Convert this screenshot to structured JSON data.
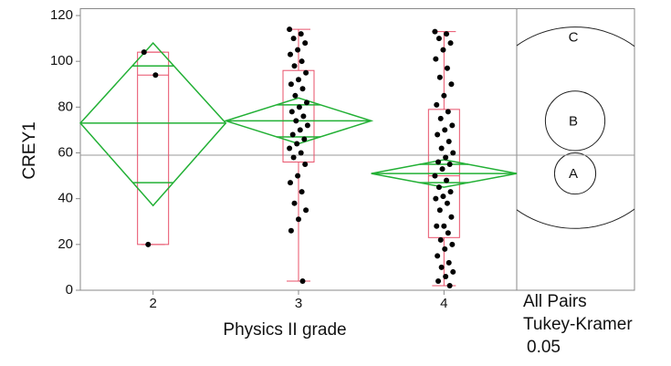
{
  "chart_data": {
    "type": "oneway",
    "y_label": "CREY1",
    "x_label": "Physics II grade",
    "ylim": [
      0,
      123
    ],
    "yticks": [
      0,
      20,
      40,
      60,
      80,
      100,
      120
    ],
    "grand_mean": 59,
    "categories": [
      "2",
      "3",
      "4"
    ],
    "groups": [
      {
        "points": [
          104,
          94,
          20
        ],
        "box": {
          "min": 20,
          "q1": 20,
          "median": 94,
          "q3": 104,
          "max": 104
        },
        "diamond": {
          "mean": 73,
          "lower": 37,
          "upper": 108,
          "overlap": [
            47,
            98
          ]
        }
      },
      {
        "points": [
          114,
          112,
          110,
          108,
          105,
          103,
          100,
          98,
          95,
          92,
          90,
          88,
          85,
          82,
          80,
          78,
          76,
          74,
          72,
          70,
          68,
          66,
          64,
          62,
          60,
          58,
          55,
          50,
          47,
          43,
          38,
          35,
          31,
          26,
          4
        ],
        "box": {
          "min": 4,
          "q1": 56,
          "median": 74,
          "q3": 96,
          "max": 114
        },
        "diamond": {
          "mean": 74,
          "lower": 64,
          "upper": 84,
          "overlap": [
            67,
            81
          ]
        }
      },
      {
        "points": [
          113,
          112,
          110,
          108,
          105,
          101,
          97,
          93,
          90,
          85,
          81,
          78,
          75,
          72,
          70,
          68,
          65,
          62,
          60,
          58,
          56,
          55,
          53,
          50,
          48,
          45,
          43,
          41,
          40,
          38,
          35,
          32,
          28,
          28,
          25,
          22,
          20,
          18,
          15,
          12,
          10,
          8,
          6,
          4,
          2
        ],
        "box": {
          "min": 2,
          "q1": 23,
          "median": 50,
          "q3": 79,
          "max": 113
        },
        "diamond": {
          "mean": 51,
          "lower": 45,
          "upper": 57,
          "overlap": [
            47,
            55
          ]
        }
      }
    ],
    "comparison_circles": [
      {
        "label": "C",
        "center": 71,
        "radius": 44
      },
      {
        "label": "B",
        "center": 74,
        "radius": 13
      },
      {
        "label": "A",
        "center": 51,
        "radius": 9
      }
    ],
    "comparison_label": [
      "All Pairs",
      "Tukey-Kramer",
      "0.05"
    ],
    "colors": {
      "box": "#e8506a",
      "diamond": "#22b035",
      "points": "#000000",
      "mean_line": "#999999"
    }
  }
}
